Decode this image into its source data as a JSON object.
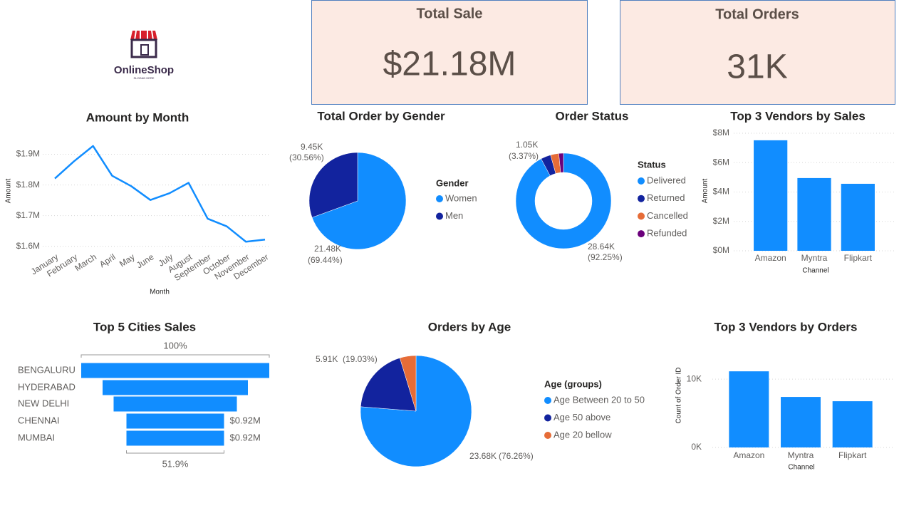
{
  "logo": {
    "name": "OnlineShop",
    "slogan": "SLOGAN HERE"
  },
  "kpis": [
    {
      "title": "Total Sale",
      "value": "$21.18M"
    },
    {
      "title": "Total Orders",
      "value": "31K"
    }
  ],
  "chart_data": [
    {
      "type": "line",
      "title": "Amount by Month",
      "x_label": "Month",
      "y_label": "Amount",
      "categories": [
        "January",
        "February",
        "March",
        "April",
        "May",
        "June",
        "July",
        "August",
        "September",
        "October",
        "November",
        "December"
      ],
      "values": [
        1821000,
        1877000,
        1927000,
        1830000,
        1796000,
        1751000,
        1773000,
        1807000,
        1690000,
        1665000,
        1615000,
        1622000
      ],
      "color": "#118DFF",
      "ylim": [
        1590000,
        1950000
      ],
      "yticks": [
        {
          "value": 1600000,
          "label": "$1.6M"
        },
        {
          "value": 1700000,
          "label": "$1.7M"
        },
        {
          "value": 1800000,
          "label": "$1.8M"
        },
        {
          "value": 1900000,
          "label": "$1.9M"
        }
      ],
      "grid": true
    },
    {
      "type": "pie",
      "title": "Total Order by Gender",
      "legend_title": "Gender",
      "categories": [
        "Women",
        "Men"
      ],
      "values": [
        21480,
        9450
      ],
      "value_labels": [
        "21.48K",
        "9.45K"
      ],
      "percents": [
        69.44,
        30.56
      ],
      "percent_labels": [
        "(69.44%)",
        "(30.56%)"
      ],
      "colors": [
        "#118DFF",
        "#12239E"
      ]
    },
    {
      "type": "donut",
      "title": "Order Status",
      "legend_title": "Status",
      "categories": [
        "Delivered",
        "Returned",
        "Cancelled",
        "Refunded"
      ],
      "values": [
        28640,
        1050,
        870,
        490
      ],
      "value_labels": [
        "28.64K",
        "1.05K",
        null,
        null
      ],
      "percents": [
        92.25,
        3.37,
        null,
        null
      ],
      "percent_labels": [
        "(92.25%)",
        "(3.37%)",
        null,
        null
      ],
      "colors": [
        "#118DFF",
        "#12239E",
        "#E66C37",
        "#6B007B"
      ]
    },
    {
      "type": "bar",
      "title": "Top 3 Vendors by Sales",
      "x_label": "Channel",
      "y_label": "Amount",
      "categories": [
        "Amazon",
        "Myntra",
        "Flipkart"
      ],
      "values": [
        7520000,
        4950000,
        4560000
      ],
      "color": "#118DFF",
      "ylim": [
        0,
        8000000
      ],
      "yticks": [
        {
          "value": 0,
          "label": "$0M"
        },
        {
          "value": 2000000,
          "label": "$2M"
        },
        {
          "value": 4000000,
          "label": "$4M"
        },
        {
          "value": 6000000,
          "label": "$6M"
        },
        {
          "value": 8000000,
          "label": "$8M"
        }
      ],
      "grid": true
    },
    {
      "type": "funnel",
      "title": "Top 5 Cities Sales",
      "categories": [
        "BENGALURU",
        "HYDERABAD",
        "NEW DELHI",
        "CHENNAI",
        "MUMBAI"
      ],
      "values": [
        1773000,
        1370000,
        1162000,
        920000,
        920000
      ],
      "value_labels": [
        null,
        null,
        null,
        "$0.92M",
        "$0.92M"
      ],
      "color": "#118DFF",
      "top_annotation": "100%",
      "bottom_annotation": "51.9%"
    },
    {
      "type": "pie",
      "title": "Orders by Age",
      "legend_title": "Age (groups)",
      "categories": [
        "Age Between 20 to 50",
        "Age 50 above",
        "Age 20 bellow"
      ],
      "values": [
        23680,
        5910,
        1460
      ],
      "value_labels": [
        "23.68K",
        "5.91K",
        null
      ],
      "percents": [
        76.26,
        19.03,
        null
      ],
      "percent_labels": [
        "(76.26%)",
        "(19.03%)",
        null
      ],
      "colors": [
        "#118DFF",
        "#12239E",
        "#E66C37"
      ]
    },
    {
      "type": "bar",
      "title": "Top 3 Vendors by Orders",
      "x_label": "Channel",
      "y_label": "Count of Order ID",
      "categories": [
        "Amazon",
        "Myntra",
        "Flipkart"
      ],
      "values": [
        11150,
        7400,
        6770
      ],
      "color": "#118DFF",
      "ylim": [
        0,
        12000
      ],
      "yticks": [
        {
          "value": 0,
          "label": "0K"
        },
        {
          "value": 10000,
          "label": "10K"
        }
      ],
      "grid": true
    }
  ]
}
